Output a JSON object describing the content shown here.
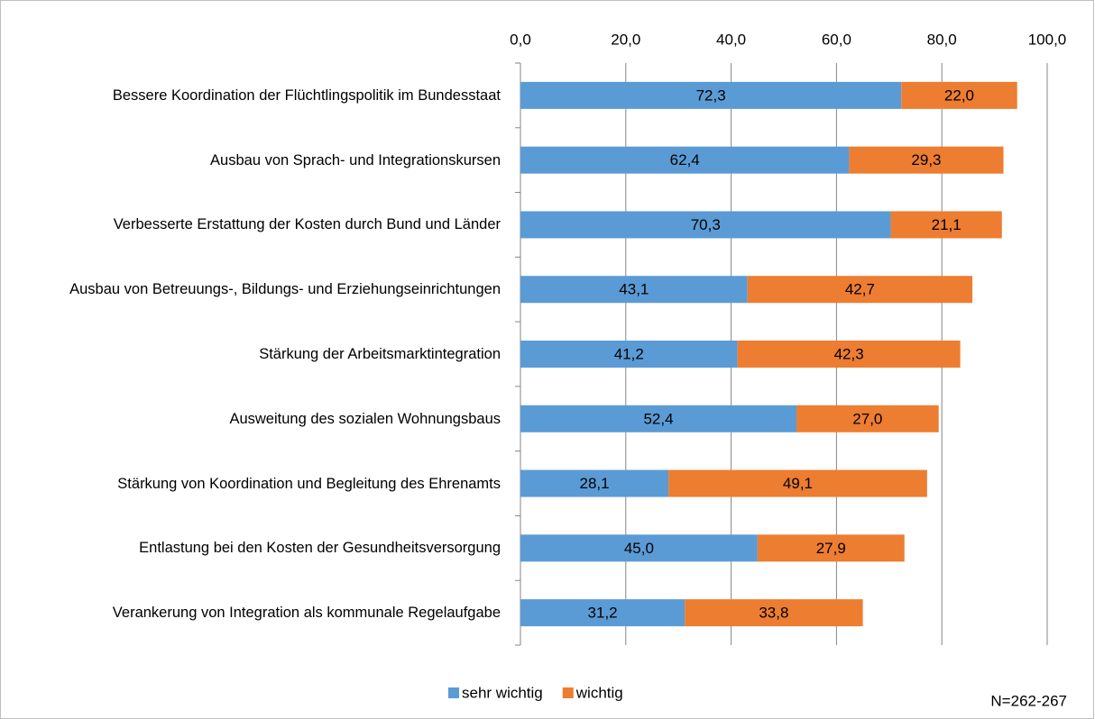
{
  "chart_data": {
    "type": "stacked-bar-horizontal",
    "categories": [
      "Bessere Koordination der Flüchtlingspolitik im Bundesstaat",
      "Ausbau von Sprach- und Integrationskursen",
      "Verbesserte Erstattung der Kosten durch Bund und Länder",
      "Ausbau von Betreuungs-, Bildungs- und Erziehungseinrichtungen",
      "Stärkung der Arbeitsmarktintegration",
      "Ausweitung des sozialen Wohnungsbaus",
      "Stärkung von Koordination und Begleitung des Ehrenamts",
      "Entlastung bei den Kosten der Gesundheitsversorgung",
      "Verankerung von Integration als kommunale Regelaufgabe"
    ],
    "series": [
      {
        "name": "sehr wichtig",
        "color": "#5b9bd5",
        "values": [
          72.3,
          62.4,
          70.3,
          43.1,
          41.2,
          52.4,
          28.1,
          45.0,
          31.2
        ],
        "value_labels": [
          "72,3",
          "62,4",
          "70,3",
          "43,1",
          "41,2",
          "52,4",
          "28,1",
          "45,0",
          "31,2"
        ]
      },
      {
        "name": "wichtig",
        "color": "#ed7d31",
        "values": [
          22.0,
          29.3,
          21.1,
          42.7,
          42.3,
          27.0,
          49.1,
          27.9,
          33.8
        ],
        "value_labels": [
          "22,0",
          "29,3",
          "21,1",
          "42,7",
          "42,3",
          "27,0",
          "49,1",
          "27,9",
          "33,8"
        ]
      }
    ],
    "xlim": [
      0,
      100
    ],
    "xticks": [
      {
        "value": 0,
        "label": "0,0"
      },
      {
        "value": 20,
        "label": "20,0"
      },
      {
        "value": 40,
        "label": "40,0"
      },
      {
        "value": 60,
        "label": "60,0"
      },
      {
        "value": 80,
        "label": "80,0"
      },
      {
        "value": 100,
        "label": "100,0"
      }
    ],
    "grid": true,
    "legend": "bottom",
    "annotations": [
      "N=262-267"
    ]
  }
}
